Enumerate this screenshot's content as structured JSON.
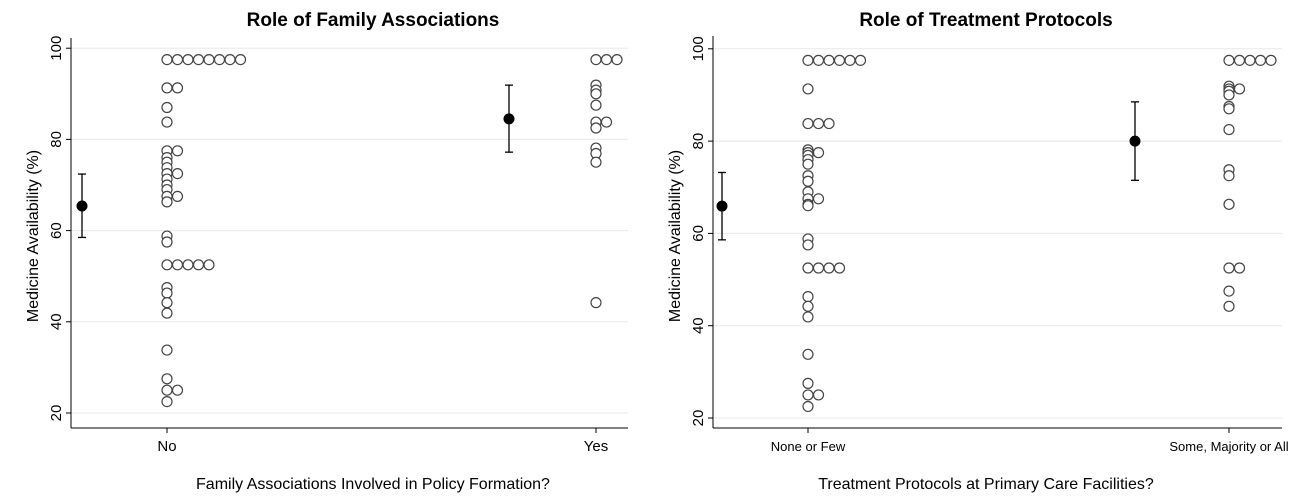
{
  "chart_data": [
    {
      "type": "scatter",
      "title": "Role of Family Associations",
      "xlabel": "Family Associations Involved in Policy Formation?",
      "ylabel": "Medicine Availability (%)",
      "categories": [
        "No",
        "Yes"
      ],
      "ylim": [
        17,
        102
      ],
      "yticks": [
        "20",
        "40",
        "60",
        "80",
        "100"
      ],
      "grid": true,
      "observations": [
        {
          "category": "No",
          "values": [
            97.5,
            97.5,
            97.5,
            97.5,
            97.5,
            97.5,
            97.5,
            97.5,
            91.3,
            91.3,
            87,
            83.8,
            77.5,
            77.5,
            76,
            75,
            73.8,
            72.5,
            72.5,
            71.3,
            70,
            69,
            67.5,
            67.5,
            66.3,
            58.8,
            57.5,
            52.5,
            52.5,
            52.5,
            52.5,
            52.5,
            47.5,
            46.3,
            44.2,
            41.9,
            33.8,
            27.5,
            25,
            25,
            22.5
          ]
        },
        {
          "category": "Yes",
          "values": [
            97.5,
            97.5,
            97.5,
            91.9,
            90.8,
            90,
            87.5,
            83.8,
            83.8,
            82.5,
            78.1,
            76.9,
            75,
            44.2
          ]
        }
      ],
      "means": [
        {
          "category": "No",
          "mean": 65.4,
          "ci_low": 58.5,
          "ci_high": 72.4
        },
        {
          "category": "Yes",
          "mean": 84.5,
          "ci_low": 77.2,
          "ci_high": 91.9
        }
      ]
    },
    {
      "type": "scatter",
      "title": "Role of Treatment Protocols",
      "xlabel": "Treatment Protocols at Primary Care Facilities?",
      "ylabel": "Medicine Availability (%)",
      "categories": [
        "None or Few",
        "Some, Majority or All"
      ],
      "ylim": [
        18,
        102
      ],
      "yticks": [
        "20",
        "40",
        "60",
        "80",
        "100"
      ],
      "grid": true,
      "observations": [
        {
          "category": "None or Few",
          "values": [
            97.5,
            97.5,
            97.5,
            97.5,
            97.5,
            97.5,
            91.3,
            83.8,
            83.8,
            83.8,
            78.1,
            77.5,
            77.5,
            76.9,
            76,
            75,
            72.5,
            71.3,
            69,
            67.5,
            67.5,
            66.3,
            66,
            58.8,
            57.5,
            52.5,
            52.5,
            52.5,
            52.5,
            46.3,
            44.2,
            41.9,
            33.8,
            27.5,
            25,
            25,
            22.5
          ]
        },
        {
          "category": "Some, Majority or All",
          "values": [
            97.5,
            97.5,
            97.5,
            97.5,
            97.5,
            91.9,
            91.3,
            91.3,
            90.8,
            90,
            87.5,
            87,
            82.5,
            73.8,
            72.5,
            66.3,
            52.5,
            52.5,
            47.5,
            44.2
          ]
        }
      ],
      "means": [
        {
          "category": "None or Few",
          "mean": 65.9,
          "ci_low": 58.6,
          "ci_high": 73.2
        },
        {
          "category": "Some, Majority or All",
          "mean": 80,
          "ci_low": 71.5,
          "ci_high": 88.5
        }
      ]
    }
  ]
}
